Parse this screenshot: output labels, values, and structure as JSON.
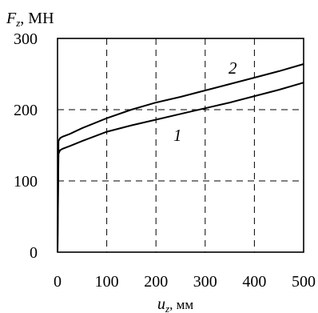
{
  "chart_data": {
    "type": "line",
    "ylabel_symbol": "F",
    "ylabel_sub": "z",
    "ylabel_unit": ", МН",
    "xlabel_symbol": "u",
    "xlabel_sub": "z",
    "xlabel_unit": ", мм",
    "xlim": [
      0,
      500
    ],
    "ylim": [
      0,
      300
    ],
    "xticks": [
      0,
      100,
      200,
      300,
      400,
      500
    ],
    "yticks": [
      0,
      100,
      200,
      300
    ],
    "xtick_labels": [
      "0",
      "100",
      "200",
      "300",
      "400",
      "500"
    ],
    "ytick_labels": [
      "0",
      "100",
      "200",
      "300"
    ],
    "grid": true,
    "series": [
      {
        "name": "1",
        "x": [
          0,
          2,
          5,
          10,
          25,
          50,
          100,
          150,
          200,
          250,
          300,
          350,
          400,
          450,
          500
        ],
        "y": [
          0,
          138,
          143,
          145,
          149,
          156,
          169,
          178,
          186,
          194,
          202,
          210,
          219,
          228,
          238
        ]
      },
      {
        "name": "2",
        "x": [
          0,
          2,
          5,
          10,
          25,
          50,
          100,
          150,
          200,
          250,
          300,
          350,
          400,
          450,
          500
        ],
        "y": [
          0,
          156,
          160,
          162,
          166,
          174,
          188,
          200,
          210,
          218,
          227,
          236,
          245,
          254,
          264
        ]
      }
    ]
  }
}
